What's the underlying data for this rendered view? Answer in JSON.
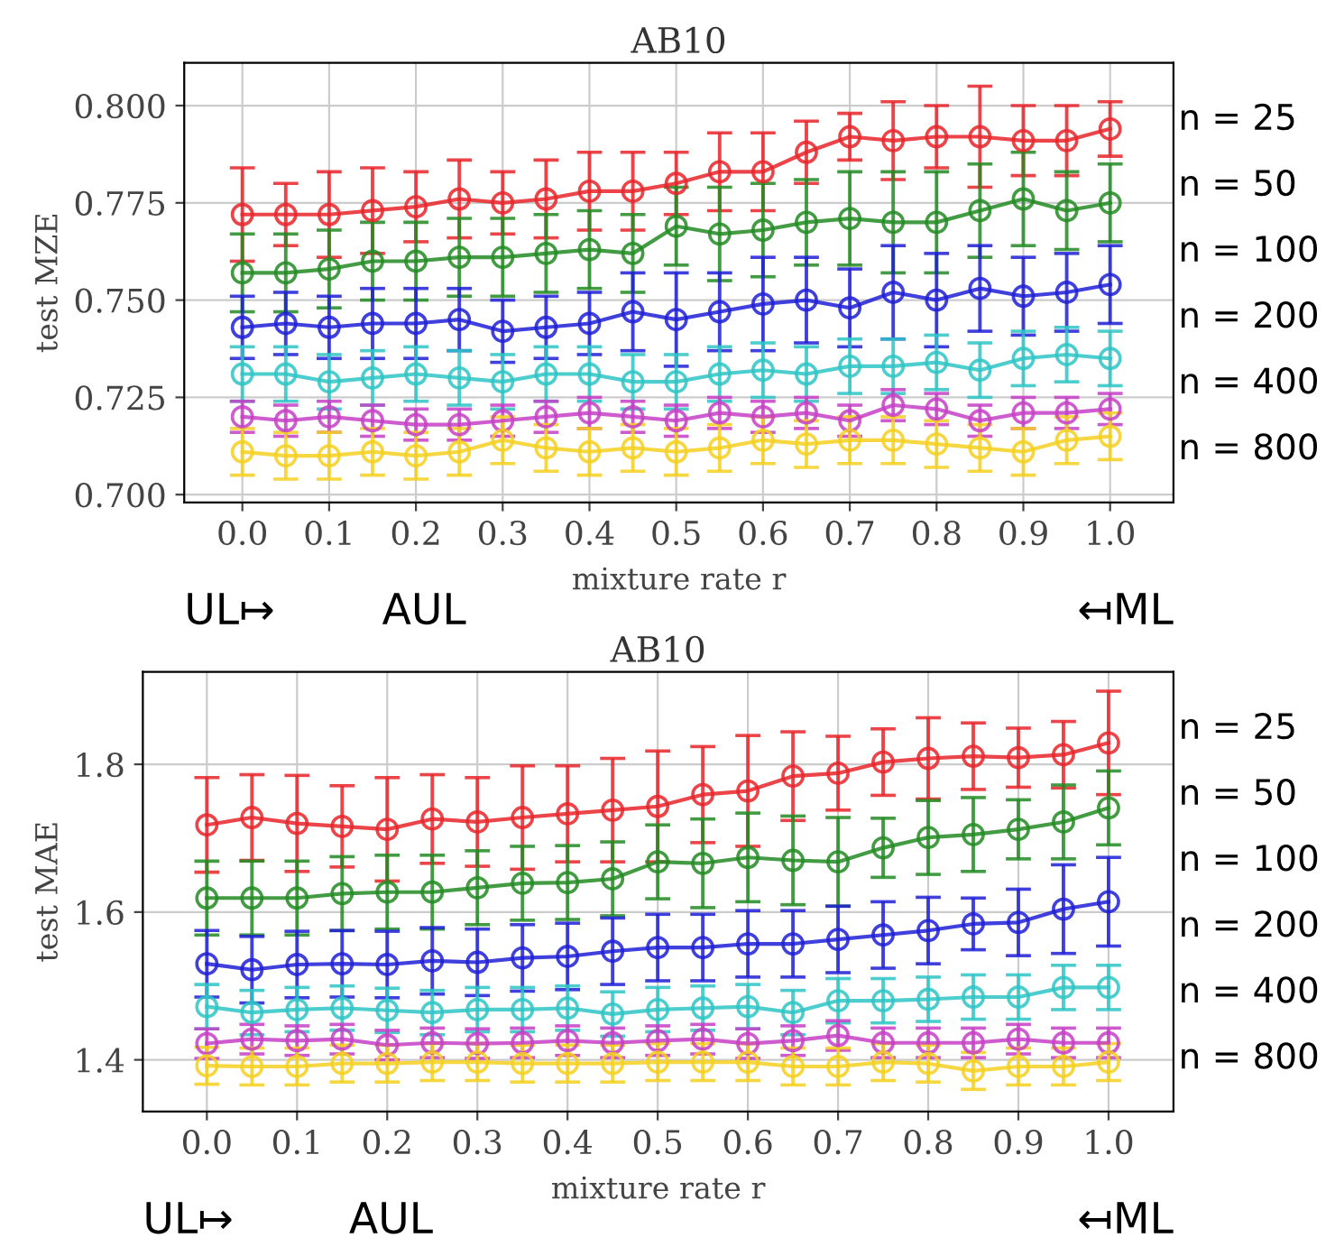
{
  "chart_data": [
    {
      "type": "line",
      "title": "AB10",
      "xlabel": "mixture rate r",
      "ylabel": "test MZE",
      "x": [
        0.0,
        0.05,
        0.1,
        0.15,
        0.2,
        0.25,
        0.3,
        0.35,
        0.4,
        0.45,
        0.5,
        0.55,
        0.6,
        0.65,
        0.7,
        0.75,
        0.8,
        0.85,
        0.9,
        0.95,
        1.0
      ],
      "xlim": [
        -0.067,
        1.073
      ],
      "xticks": [
        {
          "value": 0.0,
          "label": "0.0"
        },
        {
          "value": 0.1,
          "label": "0.1"
        },
        {
          "value": 0.2,
          "label": "0.2"
        },
        {
          "value": 0.3,
          "label": "0.3"
        },
        {
          "value": 0.4,
          "label": "0.4"
        },
        {
          "value": 0.5,
          "label": "0.5"
        },
        {
          "value": 0.6,
          "label": "0.6"
        },
        {
          "value": 0.7,
          "label": "0.7"
        },
        {
          "value": 0.8,
          "label": "0.8"
        },
        {
          "value": 0.9,
          "label": "0.9"
        },
        {
          "value": 1.0,
          "label": "1.0"
        }
      ],
      "ylim": [
        0.698,
        0.811
      ],
      "yticks": [
        {
          "value": 0.7,
          "label": "0.700"
        },
        {
          "value": 0.725,
          "label": "0.725"
        },
        {
          "value": 0.75,
          "label": "0.750"
        },
        {
          "value": 0.775,
          "label": "0.775"
        },
        {
          "value": 0.8,
          "label": "0.800"
        }
      ],
      "grid": true,
      "marker": "circle",
      "line_style": "solid",
      "legend": false,
      "series": [
        {
          "name": "n = 25",
          "color": "#e8242a",
          "values": [
            0.772,
            0.772,
            0.772,
            0.773,
            0.774,
            0.776,
            0.775,
            0.776,
            0.778,
            0.778,
            0.78,
            0.783,
            0.783,
            0.788,
            0.792,
            0.791,
            0.792,
            0.792,
            0.791,
            0.791,
            0.794
          ],
          "errors": [
            0.012,
            0.008,
            0.011,
            0.011,
            0.009,
            0.01,
            0.008,
            0.01,
            0.01,
            0.01,
            0.008,
            0.01,
            0.01,
            0.008,
            0.006,
            0.01,
            0.008,
            0.013,
            0.009,
            0.009,
            0.007
          ]
        },
        {
          "name": "n = 50",
          "color": "#228b22",
          "values": [
            0.757,
            0.757,
            0.758,
            0.76,
            0.76,
            0.761,
            0.761,
            0.762,
            0.763,
            0.762,
            0.769,
            0.767,
            0.768,
            0.77,
            0.771,
            0.77,
            0.77,
            0.773,
            0.776,
            0.773,
            0.775
          ],
          "errors": [
            0.01,
            0.01,
            0.01,
            0.01,
            0.01,
            0.01,
            0.01,
            0.01,
            0.01,
            0.01,
            0.01,
            0.012,
            0.012,
            0.011,
            0.012,
            0.013,
            0.013,
            0.012,
            0.012,
            0.01,
            0.01
          ]
        },
        {
          "name": "n = 100",
          "color": "#1f1fd6",
          "values": [
            0.743,
            0.744,
            0.743,
            0.744,
            0.744,
            0.745,
            0.742,
            0.743,
            0.744,
            0.747,
            0.745,
            0.747,
            0.749,
            0.75,
            0.748,
            0.752,
            0.75,
            0.753,
            0.751,
            0.752,
            0.754
          ],
          "errors": [
            0.008,
            0.008,
            0.008,
            0.009,
            0.009,
            0.008,
            0.008,
            0.008,
            0.008,
            0.01,
            0.012,
            0.01,
            0.012,
            0.011,
            0.01,
            0.012,
            0.012,
            0.011,
            0.01,
            0.01,
            0.01
          ]
        },
        {
          "name": "n = 200",
          "color": "#2ec4c4",
          "values": [
            0.731,
            0.731,
            0.729,
            0.73,
            0.731,
            0.73,
            0.729,
            0.731,
            0.731,
            0.729,
            0.729,
            0.731,
            0.732,
            0.731,
            0.733,
            0.733,
            0.734,
            0.732,
            0.735,
            0.736,
            0.735
          ],
          "errors": [
            0.007,
            0.007,
            0.007,
            0.007,
            0.007,
            0.007,
            0.007,
            0.007,
            0.007,
            0.007,
            0.007,
            0.007,
            0.007,
            0.007,
            0.007,
            0.007,
            0.007,
            0.007,
            0.007,
            0.007,
            0.007
          ]
        },
        {
          "name": "n = 400",
          "color": "#c63fc6",
          "values": [
            0.72,
            0.719,
            0.72,
            0.719,
            0.718,
            0.718,
            0.719,
            0.72,
            0.721,
            0.72,
            0.719,
            0.721,
            0.72,
            0.721,
            0.719,
            0.723,
            0.722,
            0.719,
            0.721,
            0.721,
            0.722
          ],
          "errors": [
            0.004,
            0.004,
            0.004,
            0.004,
            0.004,
            0.004,
            0.004,
            0.004,
            0.004,
            0.004,
            0.004,
            0.004,
            0.004,
            0.004,
            0.004,
            0.004,
            0.004,
            0.004,
            0.004,
            0.004,
            0.004
          ]
        },
        {
          "name": "n = 800",
          "color": "#f5d020",
          "values": [
            0.711,
            0.71,
            0.71,
            0.711,
            0.71,
            0.711,
            0.714,
            0.712,
            0.711,
            0.712,
            0.711,
            0.712,
            0.714,
            0.713,
            0.714,
            0.714,
            0.713,
            0.712,
            0.711,
            0.714,
            0.715
          ],
          "errors": [
            0.006,
            0.006,
            0.006,
            0.006,
            0.006,
            0.006,
            0.006,
            0.006,
            0.006,
            0.006,
            0.006,
            0.006,
            0.006,
            0.006,
            0.006,
            0.006,
            0.006,
            0.006,
            0.006,
            0.006,
            0.006
          ]
        }
      ],
      "annotations": [
        "UL↦",
        "AUL",
        "↤ML"
      ]
    },
    {
      "type": "line",
      "title": "AB10",
      "xlabel": "mixture rate r",
      "ylabel": "test MAE",
      "x": [
        0.0,
        0.05,
        0.1,
        0.15,
        0.2,
        0.25,
        0.3,
        0.35,
        0.4,
        0.45,
        0.5,
        0.55,
        0.6,
        0.65,
        0.7,
        0.75,
        0.8,
        0.85,
        0.9,
        0.95,
        1.0
      ],
      "xlim": [
        -0.071,
        1.072
      ],
      "xticks": [
        {
          "value": 0.0,
          "label": "0.0"
        },
        {
          "value": 0.1,
          "label": "0.1"
        },
        {
          "value": 0.2,
          "label": "0.2"
        },
        {
          "value": 0.3,
          "label": "0.3"
        },
        {
          "value": 0.4,
          "label": "0.4"
        },
        {
          "value": 0.5,
          "label": "0.5"
        },
        {
          "value": 0.6,
          "label": "0.6"
        },
        {
          "value": 0.7,
          "label": "0.7"
        },
        {
          "value": 0.8,
          "label": "0.8"
        },
        {
          "value": 0.9,
          "label": "0.9"
        },
        {
          "value": 1.0,
          "label": "1.0"
        }
      ],
      "ylim": [
        1.33,
        1.925
      ],
      "yticks": [
        1.4,
        1.6,
        1.8
      ],
      "grid": true,
      "marker": "circle",
      "line_style": "solid",
      "legend": false,
      "series": [
        {
          "name": "n = 25",
          "color": "#e8242a",
          "values": [
            1.718,
            1.728,
            1.72,
            1.716,
            1.712,
            1.726,
            1.722,
            1.728,
            1.733,
            1.738,
            1.743,
            1.759,
            1.764,
            1.784,
            1.788,
            1.803,
            1.808,
            1.811,
            1.809,
            1.813,
            1.829
          ],
          "errors": [
            0.064,
            0.058,
            0.065,
            0.055,
            0.07,
            0.06,
            0.06,
            0.07,
            0.065,
            0.07,
            0.075,
            0.065,
            0.075,
            0.06,
            0.05,
            0.045,
            0.055,
            0.045,
            0.04,
            0.045,
            0.07
          ]
        },
        {
          "name": "n = 50",
          "color": "#228b22",
          "values": [
            1.619,
            1.619,
            1.619,
            1.625,
            1.627,
            1.627,
            1.633,
            1.639,
            1.64,
            1.645,
            1.668,
            1.666,
            1.674,
            1.67,
            1.668,
            1.687,
            1.701,
            1.705,
            1.712,
            1.722,
            1.741
          ],
          "errors": [
            0.05,
            0.05,
            0.05,
            0.05,
            0.05,
            0.05,
            0.05,
            0.05,
            0.05,
            0.05,
            0.05,
            0.06,
            0.06,
            0.06,
            0.06,
            0.04,
            0.05,
            0.05,
            0.04,
            0.05,
            0.05
          ]
        },
        {
          "name": "n = 100",
          "color": "#1f1fd6",
          "values": [
            1.53,
            1.522,
            1.529,
            1.53,
            1.529,
            1.534,
            1.532,
            1.538,
            1.54,
            1.547,
            1.552,
            1.552,
            1.557,
            1.557,
            1.563,
            1.569,
            1.575,
            1.584,
            1.586,
            1.604,
            1.614
          ],
          "errors": [
            0.045,
            0.045,
            0.045,
            0.045,
            0.045,
            0.045,
            0.045,
            0.045,
            0.045,
            0.045,
            0.045,
            0.045,
            0.045,
            0.045,
            0.045,
            0.045,
            0.045,
            0.035,
            0.045,
            0.06,
            0.06
          ]
        },
        {
          "name": "n = 200",
          "color": "#2ec4c4",
          "values": [
            1.472,
            1.464,
            1.468,
            1.47,
            1.467,
            1.464,
            1.468,
            1.468,
            1.47,
            1.462,
            1.468,
            1.47,
            1.472,
            1.464,
            1.48,
            1.48,
            1.482,
            1.485,
            1.485,
            1.498,
            1.498
          ],
          "errors": [
            0.03,
            0.03,
            0.03,
            0.03,
            0.03,
            0.03,
            0.03,
            0.03,
            0.03,
            0.03,
            0.03,
            0.03,
            0.03,
            0.03,
            0.03,
            0.03,
            0.03,
            0.03,
            0.03,
            0.03,
            0.03
          ]
        },
        {
          "name": "n = 400",
          "color": "#c63fc6",
          "values": [
            1.422,
            1.428,
            1.426,
            1.428,
            1.42,
            1.423,
            1.422,
            1.423,
            1.426,
            1.423,
            1.426,
            1.428,
            1.422,
            1.426,
            1.433,
            1.423,
            1.423,
            1.423,
            1.428,
            1.423,
            1.423
          ],
          "errors": [
            0.02,
            0.02,
            0.02,
            0.02,
            0.02,
            0.02,
            0.02,
            0.02,
            0.02,
            0.02,
            0.02,
            0.02,
            0.02,
            0.02,
            0.02,
            0.02,
            0.02,
            0.02,
            0.02,
            0.02,
            0.02
          ]
        },
        {
          "name": "n = 800",
          "color": "#f5d020",
          "values": [
            1.392,
            1.391,
            1.391,
            1.395,
            1.395,
            1.397,
            1.397,
            1.395,
            1.395,
            1.395,
            1.397,
            1.397,
            1.397,
            1.391,
            1.391,
            1.397,
            1.395,
            1.385,
            1.391,
            1.391,
            1.397
          ],
          "errors": [
            0.025,
            0.025,
            0.025,
            0.025,
            0.025,
            0.025,
            0.025,
            0.025,
            0.025,
            0.025,
            0.025,
            0.025,
            0.025,
            0.025,
            0.025,
            0.025,
            0.025,
            0.025,
            0.025,
            0.025,
            0.025
          ]
        }
      ],
      "annotations": [
        "UL↦",
        "AUL",
        "↤ML"
      ]
    }
  ]
}
